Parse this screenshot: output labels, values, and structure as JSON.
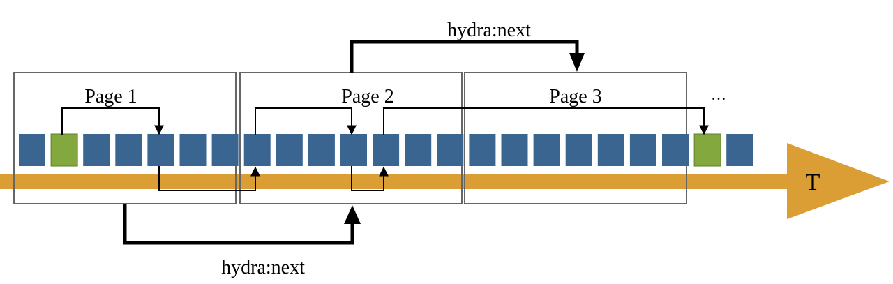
{
  "diagram": {
    "pages": [
      {
        "label": "Page 1"
      },
      {
        "label": "Page 2"
      },
      {
        "label": "Page 3"
      }
    ],
    "ellipsis": "…",
    "axis_label": "T",
    "top_link_label": "hydra:next",
    "bottom_link_label": "hydra:next",
    "colors": {
      "timeline": "#DA9E35",
      "item": "#3A6591",
      "highlight": "#83A93E",
      "page_border": "#666666",
      "link": "#000000"
    },
    "items": [
      "blue",
      "green",
      "blue",
      "blue",
      "blue",
      "blue",
      "blue",
      "blue",
      "blue",
      "blue",
      "blue",
      "blue",
      "blue",
      "blue",
      "blue",
      "blue",
      "blue",
      "blue",
      "blue",
      "blue",
      "blue",
      "green",
      "blue"
    ]
  }
}
